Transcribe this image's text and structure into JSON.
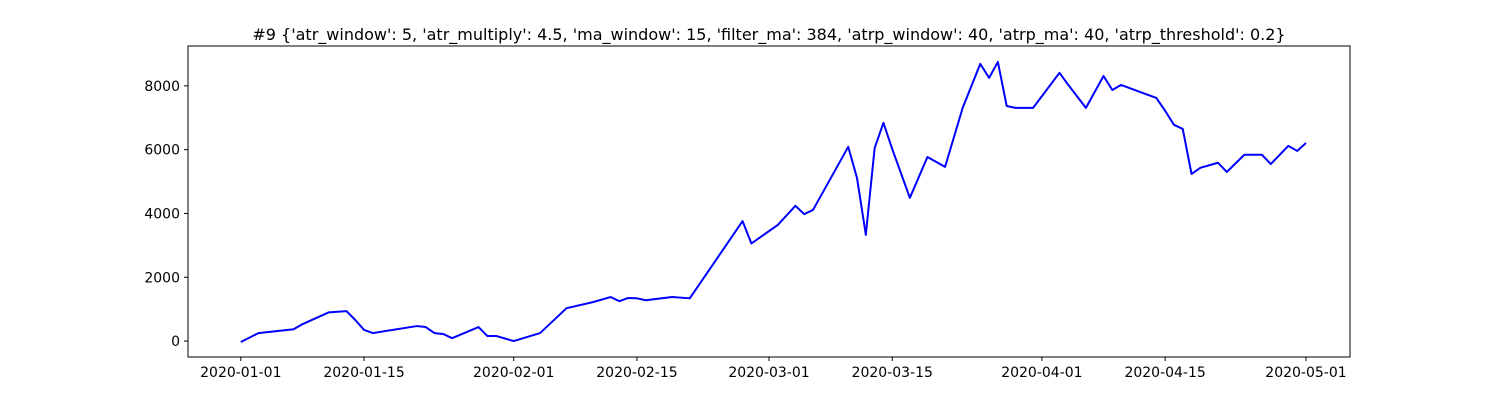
{
  "chart_data": {
    "type": "line",
    "title": "#9 {'atr_window': 5, 'atr_multiply': 4.5, 'ma_window': 15, 'filter_ma': 384, 'atrp_window': 40, 'atrp_ma': 40, 'atrp_threshold': 0.2}",
    "x": [
      "2020-01-01",
      "2020-01-03",
      "2020-01-07",
      "2020-01-08",
      "2020-01-11",
      "2020-01-13",
      "2020-01-14",
      "2020-01-15",
      "2020-01-16",
      "2020-01-21",
      "2020-01-22",
      "2020-01-23",
      "2020-01-24",
      "2020-01-25",
      "2020-01-28",
      "2020-01-29",
      "2020-01-30",
      "2020-02-01",
      "2020-02-04",
      "2020-02-07",
      "2020-02-10",
      "2020-02-12",
      "2020-02-13",
      "2020-02-14",
      "2020-02-15",
      "2020-02-16",
      "2020-02-19",
      "2020-02-21",
      "2020-02-27",
      "2020-02-28",
      "2020-03-02",
      "2020-03-04",
      "2020-03-05",
      "2020-03-06",
      "2020-03-10",
      "2020-03-11",
      "2020-03-12",
      "2020-03-13",
      "2020-03-14",
      "2020-03-15",
      "2020-03-17",
      "2020-03-19",
      "2020-03-21",
      "2020-03-23",
      "2020-03-25",
      "2020-03-26",
      "2020-03-27",
      "2020-03-28",
      "2020-03-29",
      "2020-03-31",
      "2020-04-03",
      "2020-04-04",
      "2020-04-06",
      "2020-04-08",
      "2020-04-09",
      "2020-04-10",
      "2020-04-14",
      "2020-04-15",
      "2020-04-16",
      "2020-04-17",
      "2020-04-18",
      "2020-04-19",
      "2020-04-21",
      "2020-04-22",
      "2020-04-24",
      "2020-04-26",
      "2020-04-27",
      "2020-04-29",
      "2020-04-30",
      "2020-05-01"
    ],
    "values": [
      -30,
      250,
      370,
      530,
      900,
      940,
      660,
      350,
      250,
      470,
      440,
      250,
      220,
      90,
      440,
      160,
      160,
      0,
      250,
      1030,
      1220,
      1380,
      1250,
      1350,
      1340,
      1280,
      1380,
      1340,
      3760,
      3060,
      3640,
      4240,
      3980,
      4110,
      6090,
      5110,
      3330,
      6050,
      6840,
      6020,
      4490,
      5770,
      5460,
      7310,
      8690,
      8250,
      8750,
      7370,
      7310,
      7310,
      8410,
      8030,
      7310,
      8310,
      7870,
      8030,
      7620,
      7220,
      6780,
      6650,
      5240,
      5430,
      5590,
      5300,
      5840,
      5840,
      5550,
      6120,
      5960,
      6210
    ],
    "color": "#0000ff",
    "xlim": [
      "2019-12-26",
      "2020-05-06"
    ],
    "xticks": [
      "2020-01-01",
      "2020-01-15",
      "2020-02-01",
      "2020-02-15",
      "2020-03-01",
      "2020-03-15",
      "2020-04-01",
      "2020-04-15",
      "2020-05-01"
    ],
    "ylim": [
      -500,
      9250
    ],
    "yticks": [
      0,
      2000,
      4000,
      6000,
      8000
    ]
  }
}
